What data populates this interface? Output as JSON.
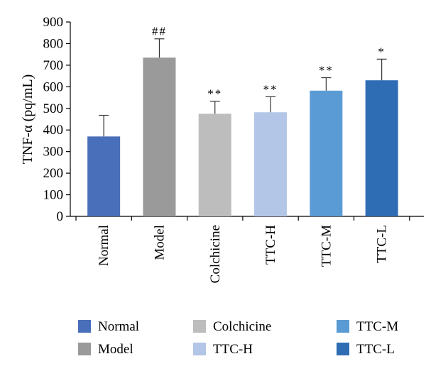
{
  "chart_data": {
    "type": "bar",
    "ylabel": "TNF-α (pq/mL)",
    "xlabel": "",
    "ylim": [
      0,
      900
    ],
    "yticks": [
      0,
      100,
      200,
      300,
      400,
      500,
      600,
      700,
      800,
      900
    ],
    "grid": false,
    "legend_position": "bottom",
    "categories": [
      "Normal",
      "Model",
      "Colchicine",
      "TTC-H",
      "TTC-M",
      "TTC-L"
    ],
    "values": [
      370,
      735,
      475,
      482,
      582,
      630
    ],
    "errors": [
      98,
      87,
      58,
      72,
      60,
      98
    ],
    "significance": [
      "",
      "##",
      "**",
      "**",
      "**",
      "*"
    ],
    "colors": [
      "#4a6fba",
      "#9a9a9a",
      "#bdbdbd",
      "#b3c6e7",
      "#5b9bd5",
      "#2e6db4"
    ],
    "legend": [
      {
        "label": "Normal",
        "color": "#4a6fba"
      },
      {
        "label": "Colchicine",
        "color": "#bdbdbd"
      },
      {
        "label": "TTC-M",
        "color": "#5b9bd5"
      },
      {
        "label": "Model",
        "color": "#9a9a9a"
      },
      {
        "label": "TTC-H",
        "color": "#b3c6e7"
      },
      {
        "label": "TTC-L",
        "color": "#2e6db4"
      }
    ]
  }
}
